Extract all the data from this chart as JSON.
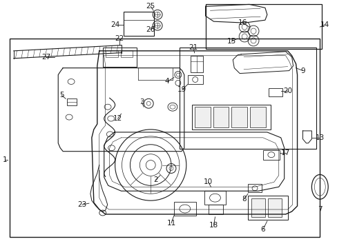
{
  "bg_color": "#ffffff",
  "fig_width": 4.89,
  "fig_height": 3.6,
  "dpi": 100,
  "line_color": "#1a1a1a",
  "label_fontsize": 7.5,
  "small_fontsize": 6.5
}
